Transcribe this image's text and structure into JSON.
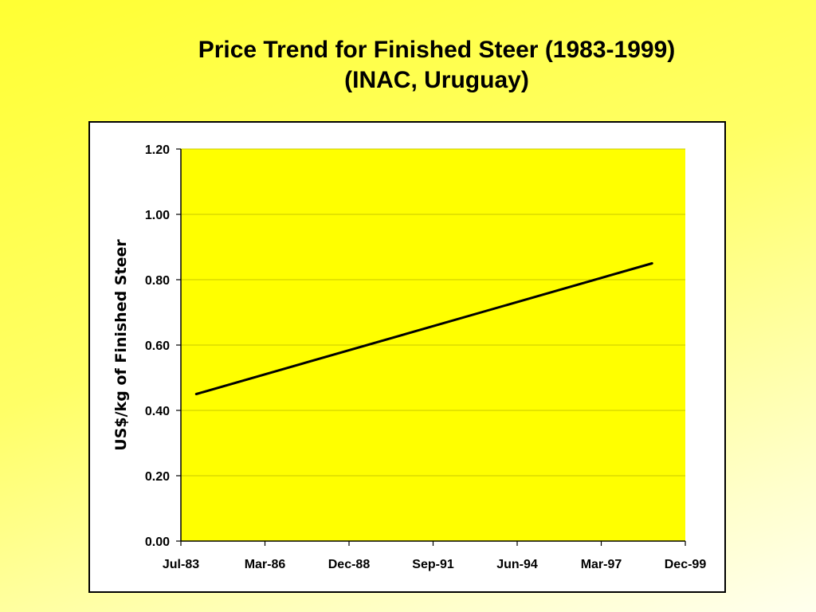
{
  "slide": {
    "title_line1": "Price Trend for Finished Steer (1983-1999)",
    "title_line2": "(INAC, Uruguay)"
  },
  "colors": {
    "plot_background": "#ffff00",
    "line": "#000000",
    "gridline": "#c8c800"
  },
  "chart_data": {
    "type": "line",
    "title": "Price Trend for Finished Steer (1983-1999) (INAC, Uruguay)",
    "xlabel": "",
    "ylabel": "US$/kg of Finished Steer",
    "x_ticks": [
      "Jul-83",
      "Mar-86",
      "Dec-88",
      "Sep-91",
      "Jun-94",
      "Mar-97",
      "Dec-99"
    ],
    "x_range": [
      "1983-07",
      "1999-12"
    ],
    "y_ticks": [
      "0.00",
      "0.20",
      "0.40",
      "0.60",
      "0.80",
      "1.00",
      "1.20"
    ],
    "ylim": [
      0,
      1.2
    ],
    "grid": true,
    "legend": "none",
    "series": [
      {
        "x": [
          "1984-01",
          "1998-11"
        ],
        "values": [
          0.45,
          0.85
        ]
      }
    ]
  }
}
